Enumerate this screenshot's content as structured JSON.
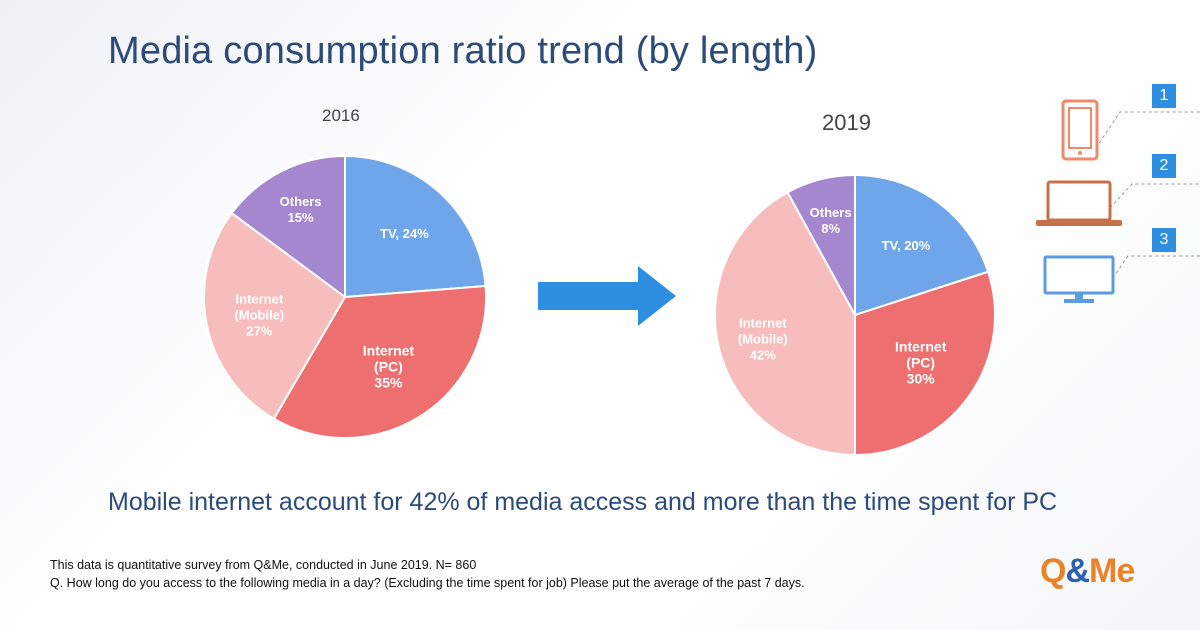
{
  "title": "Media consumption ratio trend (by length)",
  "summary": "Mobile internet account for 42% of media access and more than the time spent for PC",
  "footnotes": [
    "This data is quantitative survey from Q&Me, conducted in June 2019. N= 860",
    "Q. How long do you access to the following media in a day? (Excluding the time spent for job) Please put the average of the past 7 days."
  ],
  "logo": {
    "text_a": "Q",
    "text_amp": "&",
    "text_b": "Me"
  },
  "device_badges": [
    "1",
    "2",
    "3"
  ],
  "device_icons": [
    "smartphone-icon",
    "laptop-icon",
    "monitor-icon"
  ],
  "chart_data": [
    {
      "type": "pie",
      "title": "2016",
      "categories": [
        "TV",
        "Internet (PC)",
        "Internet (Mobile)",
        "Others"
      ],
      "values": [
        24,
        35,
        27,
        15
      ],
      "labels": [
        [
          "TV, 24%"
        ],
        [
          "Internet",
          "(PC)",
          "35%"
        ],
        [
          "Internet",
          "(Mobile)",
          "27%"
        ],
        [
          "Others",
          "15%"
        ]
      ],
      "colors": [
        "#6fa6ea",
        "#ee6f6f",
        "#f7bcbc",
        "#a487cf"
      ]
    },
    {
      "type": "pie",
      "title": "2019",
      "categories": [
        "TV",
        "Internet (PC)",
        "Internet (Mobile)",
        "Others"
      ],
      "values": [
        20,
        30,
        42,
        8
      ],
      "labels": [
        [
          "TV, 20%"
        ],
        [
          "Internet",
          "(PC)",
          "30%"
        ],
        [
          "Internet",
          "(Mobile)",
          "42%"
        ],
        [
          "Others",
          "8%"
        ]
      ],
      "colors": [
        "#6fa6ea",
        "#ee6f6f",
        "#f7bcbc",
        "#a487cf"
      ]
    }
  ]
}
